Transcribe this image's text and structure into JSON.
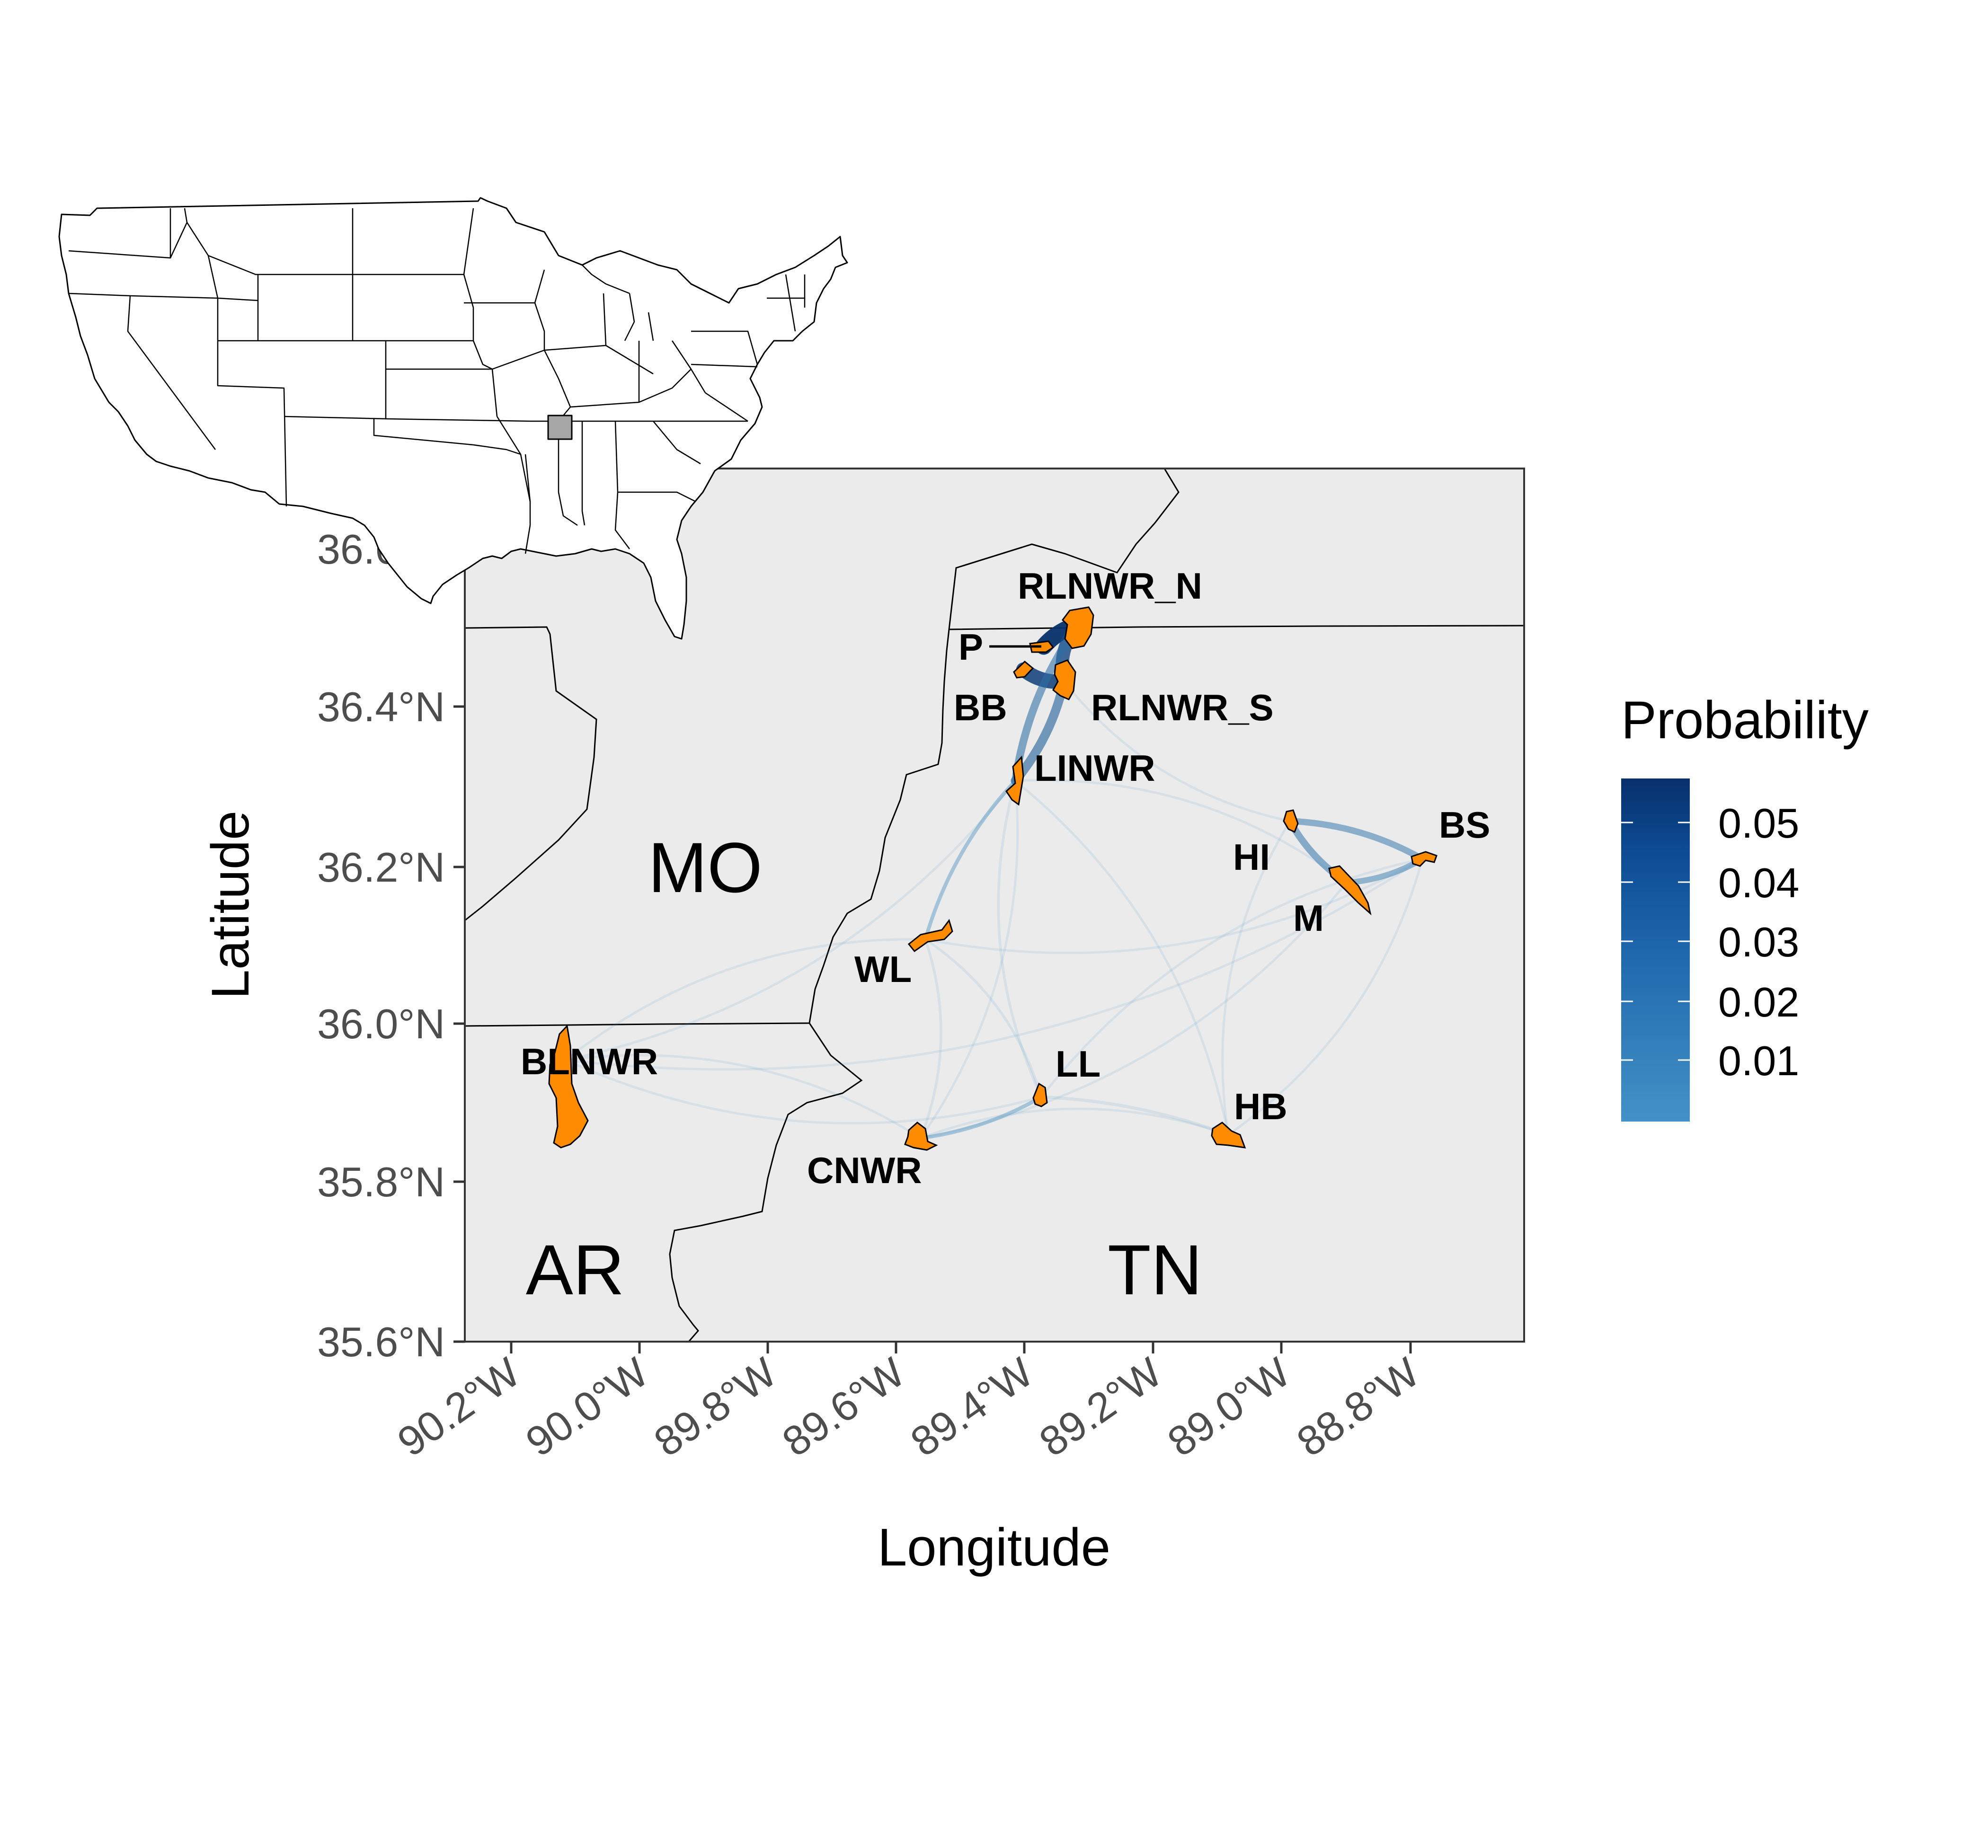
{
  "axes": {
    "x_title": "Longitude",
    "y_title": "Latitude",
    "x_ticks": [
      "90.2°W",
      "90.0°W",
      "89.8°W",
      "89.6°W",
      "89.4°W",
      "89.2°W",
      "89.0°W",
      "88.8°W"
    ],
    "y_ticks": [
      "35.6°N",
      "35.8°N",
      "36.0°N",
      "36.2°N",
      "36.4°N",
      "36.6°N"
    ]
  },
  "states": [
    "MO",
    "AR",
    "TN"
  ],
  "sites": [
    "RLNWR_N",
    "P",
    "BB",
    "RLNWR_S",
    "LINWR",
    "HI",
    "BS",
    "M",
    "WL",
    "BLNWR",
    "LL",
    "HB",
    "CNWR"
  ],
  "legend": {
    "title": "Probability",
    "labels": [
      "0.05",
      "0.04",
      "0.03",
      "0.02",
      "0.01"
    ]
  },
  "colors": {
    "panel_background": "#ebebeb",
    "site_fill": "#ff8c00",
    "gradient_high": "#08306b",
    "gradient_low": "#4292c6"
  },
  "chart_data": {
    "type": "map",
    "xlim": [
      -90.27,
      -88.63
    ],
    "ylim": [
      35.6,
      36.68
    ],
    "legend_range": [
      0.005,
      0.058
    ],
    "flows": [
      {
        "from": "P",
        "to": "RLNWR_N",
        "probability": 0.058
      },
      {
        "from": "BB",
        "to": "RLNWR_S",
        "probability": 0.05
      },
      {
        "from": "RLNWR_N",
        "to": "RLNWR_S",
        "probability": 0.045
      },
      {
        "from": "RLNWR_S",
        "to": "LINWR",
        "probability": 0.03
      },
      {
        "from": "RLNWR_N",
        "to": "LINWR",
        "probability": 0.025
      },
      {
        "from": "HI",
        "to": "M",
        "probability": 0.022
      },
      {
        "from": "HI",
        "to": "BS",
        "probability": 0.02
      },
      {
        "from": "M",
        "to": "BS",
        "probability": 0.018
      },
      {
        "from": "LINWR",
        "to": "WL",
        "probability": 0.01
      },
      {
        "from": "CNWR",
        "to": "LL",
        "probability": 0.01
      },
      {
        "from": "LL",
        "to": "HB",
        "probability": 0.008
      },
      {
        "from": "WL",
        "to": "LL",
        "probability": 0.006
      },
      {
        "from": "LINWR",
        "to": "LL",
        "probability": 0.006
      },
      {
        "from": "WL",
        "to": "CNWR",
        "probability": 0.006
      },
      {
        "from": "RLNWR_S",
        "to": "HI",
        "probability": 0.005
      },
      {
        "from": "LL",
        "to": "BS",
        "probability": 0.005
      },
      {
        "from": "HB",
        "to": "BS",
        "probability": 0.005
      },
      {
        "from": "LINWR",
        "to": "HB",
        "probability": 0.005
      },
      {
        "from": "CNWR",
        "to": "BLNWR",
        "probability": 0.005
      },
      {
        "from": "HB",
        "to": "HI",
        "probability": 0.004
      },
      {
        "from": "WL",
        "to": "BS",
        "probability": 0.004
      },
      {
        "from": "LINWR",
        "to": "M",
        "probability": 0.004
      },
      {
        "from": "WL",
        "to": "BLNWR",
        "probability": 0.004
      },
      {
        "from": "LINWR",
        "to": "BLNWR",
        "probability": 0.003
      },
      {
        "from": "BLNWR",
        "to": "BS",
        "probability": 0.003
      },
      {
        "from": "CNWR",
        "to": "HB",
        "probability": 0.003
      },
      {
        "from": "CNWR",
        "to": "M",
        "probability": 0.003
      },
      {
        "from": "LINWR",
        "to": "CNWR",
        "probability": 0.003
      },
      {
        "from": "BLNWR",
        "to": "LL",
        "probability": 0.003
      }
    ]
  }
}
